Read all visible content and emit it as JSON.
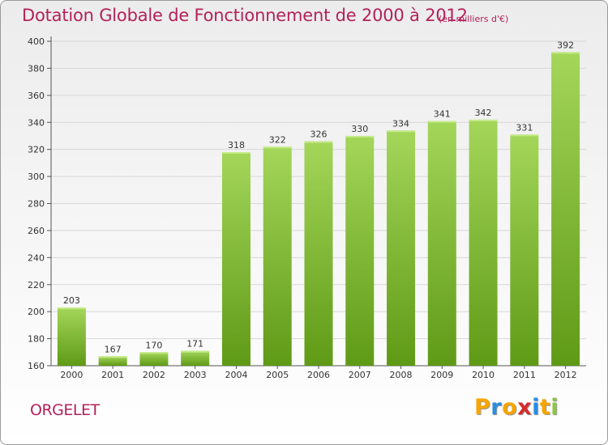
{
  "chart_data": {
    "type": "bar",
    "title": "Dotation Globale de Fonctionnement de 2000 à 2012",
    "subtitle": "(en milliers d'€)",
    "categories": [
      "2000",
      "2001",
      "2002",
      "2003",
      "2004",
      "2005",
      "2006",
      "2007",
      "2008",
      "2009",
      "2010",
      "2011",
      "2012"
    ],
    "values": [
      203,
      167,
      170,
      171,
      318,
      322,
      326,
      330,
      334,
      341,
      342,
      331,
      392
    ],
    "xlabel": "",
    "ylabel": "",
    "ylim": [
      160,
      400
    ],
    "yticks": [
      160,
      180,
      200,
      220,
      240,
      260,
      280,
      300,
      320,
      340,
      360,
      380,
      400
    ],
    "grid": true,
    "legend": "none",
    "colors": {
      "bar_light": "#a4d65a",
      "bar_dark": "#5f9a16",
      "title": "#b3215a",
      "grid": "#d7d7d7"
    }
  },
  "footer": {
    "commune": "ORGELET",
    "brand": [
      "P",
      "r",
      "o",
      "x",
      "i",
      "t",
      "i"
    ],
    "brand_colors": [
      "#f7a500",
      "#2b8de0",
      "#f7a500",
      "#d42b2b",
      "#2b8de0",
      "#f7a500",
      "#8cc63f"
    ]
  }
}
